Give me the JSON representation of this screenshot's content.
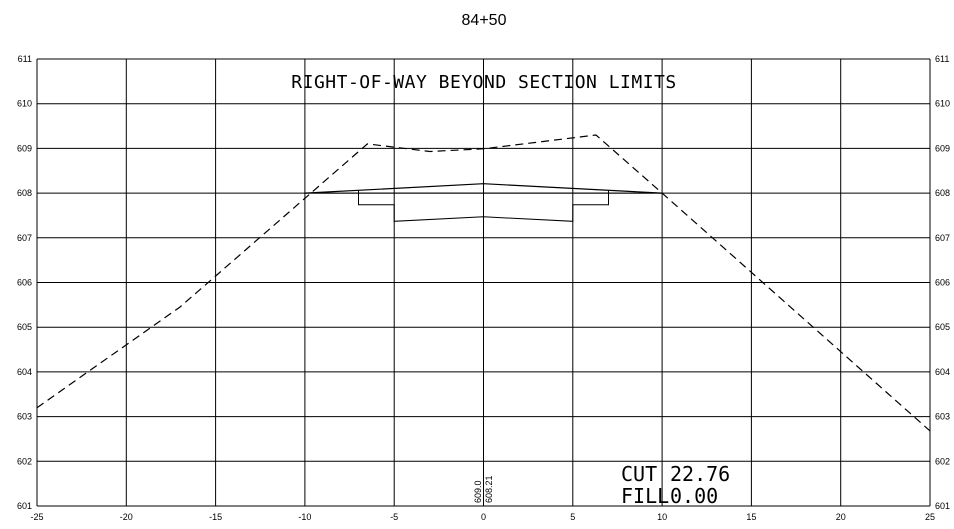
{
  "station": "84+50",
  "note": "RIGHT-OF-WAY BEYOND SECTION LIMITS",
  "cut_label": "CUT",
  "cut_value": "22.76",
  "fill_label": "FILL",
  "fill_value": "0.00",
  "centerline_labels": [
    "609.0",
    "608.21"
  ],
  "chart_data": {
    "type": "line",
    "xlim": [
      -25,
      25
    ],
    "ylim": [
      601,
      611
    ],
    "x_ticks": [
      -25,
      -20,
      -15,
      -10,
      -5,
      0,
      5,
      10,
      15,
      20,
      25
    ],
    "y_ticks": [
      601,
      602,
      603,
      604,
      605,
      606,
      607,
      608,
      609,
      610,
      611
    ],
    "grid": true,
    "existing_ground": [
      [
        -25,
        603.2
      ],
      [
        -17,
        605.45
      ],
      [
        -6.5,
        609.1
      ],
      [
        -3,
        608.93
      ],
      [
        0,
        608.99
      ],
      [
        6.3,
        609.3
      ],
      [
        10,
        608.0
      ],
      [
        25,
        602.68
      ]
    ],
    "proposed_surface": [
      [
        -10,
        608.0
      ],
      [
        0,
        608.21
      ],
      [
        10,
        608.0
      ]
    ],
    "subgrade": [
      [
        -7,
        608.06
      ],
      [
        -7,
        607.74
      ],
      [
        -5,
        607.74
      ],
      [
        -5,
        607.37
      ],
      [
        0,
        607.47
      ],
      [
        5,
        607.37
      ],
      [
        5,
        607.74
      ],
      [
        7,
        607.74
      ],
      [
        7,
        608.06
      ]
    ]
  }
}
